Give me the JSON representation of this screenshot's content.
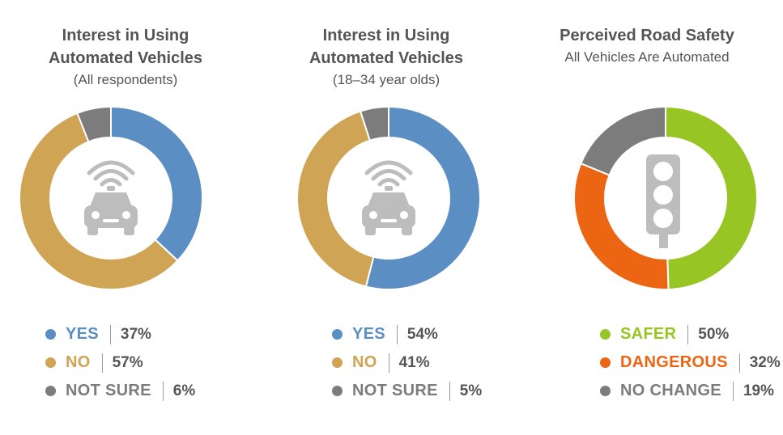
{
  "chart_data": [
    {
      "type": "pie",
      "variant": "donut",
      "title": "Interest in Using\nAutomated Vehicles",
      "subtitle": "(All respondents)",
      "icon": "car-icon",
      "categories": [
        "YES",
        "NO",
        "NOT SURE"
      ],
      "values": [
        37,
        57,
        6
      ],
      "value_labels": [
        "37%",
        "57%",
        "6%"
      ],
      "colors": [
        "#5b8ec2",
        "#cfa455",
        "#7c7c7c"
      ]
    },
    {
      "type": "pie",
      "variant": "donut",
      "title": "Interest in Using\nAutomated Vehicles",
      "subtitle": "(18–34 year olds)",
      "icon": "car-icon",
      "categories": [
        "YES",
        "NO",
        "NOT SURE"
      ],
      "values": [
        54,
        41,
        5
      ],
      "value_labels": [
        "54%",
        "41%",
        "5%"
      ],
      "colors": [
        "#5b8ec2",
        "#cfa455",
        "#7c7c7c"
      ]
    },
    {
      "type": "pie",
      "variant": "donut",
      "title": "Perceived Road Safety",
      "subtitle": "All Vehicles Are Automated",
      "icon": "traffic-light-icon",
      "categories": [
        "SAFER",
        "DANGEROUS",
        "NO CHANGE"
      ],
      "values": [
        50,
        32,
        19
      ],
      "value_labels": [
        "50%",
        "32%",
        "19%"
      ],
      "colors": [
        "#97c523",
        "#ec6512",
        "#7c7c7c"
      ]
    }
  ],
  "colors": {
    "icon": "#bdbdbd",
    "text": "#555555",
    "separator": "#9a9a9a"
  }
}
